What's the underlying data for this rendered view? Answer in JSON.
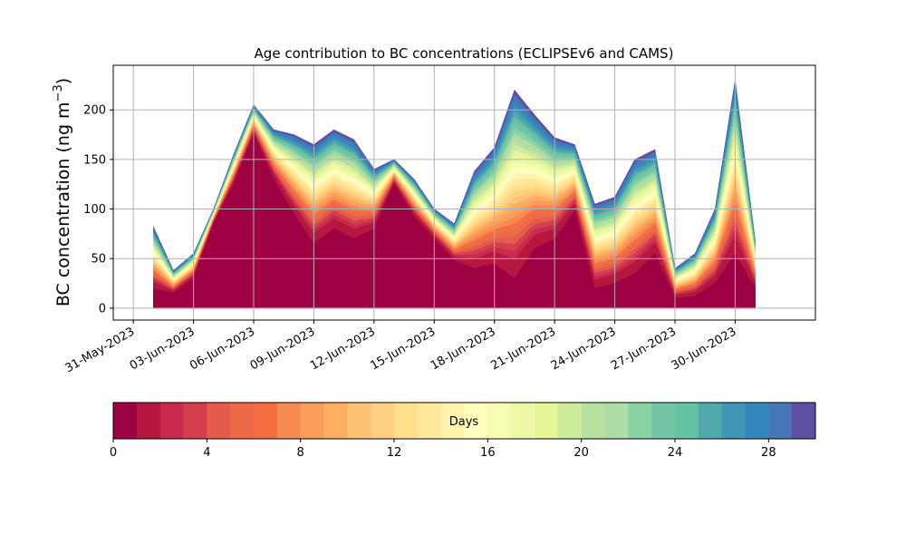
{
  "chart_data": {
    "type": "area",
    "stacked": true,
    "title": "Age contribution to BC concentrations (ECLIPSEv6 and CAMS)",
    "ylabel": "BC concentration (ng m",
    "ylabel_sup": "−3",
    "ylabel_close": ")",
    "xlabel": "",
    "grid": true,
    "ylim": [
      -12,
      245
    ],
    "yticks": [
      0,
      50,
      100,
      150,
      200
    ],
    "xlim": [
      "2023-05-30",
      "2023-07-04"
    ],
    "xticks": [
      "31-May-2023",
      "03-Jun-2023",
      "06-Jun-2023",
      "09-Jun-2023",
      "12-Jun-2023",
      "15-Jun-2023",
      "18-Jun-2023",
      "21-Jun-2023",
      "24-Jun-2023",
      "27-Jun-2023",
      "30-Jun-2023"
    ],
    "xtick_dates": [
      "2023-05-31",
      "2023-06-03",
      "2023-06-06",
      "2023-06-09",
      "2023-06-12",
      "2023-06-15",
      "2023-06-18",
      "2023-06-21",
      "2023-06-24",
      "2023-06-27",
      "2023-06-30"
    ],
    "dates": [
      "2023-06-01",
      "2023-06-02",
      "2023-06-03",
      "2023-06-04",
      "2023-06-05",
      "2023-06-06",
      "2023-06-07",
      "2023-06-08",
      "2023-06-09",
      "2023-06-10",
      "2023-06-11",
      "2023-06-12",
      "2023-06-13",
      "2023-06-14",
      "2023-06-15",
      "2023-06-16",
      "2023-06-17",
      "2023-06-18",
      "2023-06-19",
      "2023-06-20",
      "2023-06-21",
      "2023-06-22",
      "2023-06-23",
      "2023-06-24",
      "2023-06-25",
      "2023-06-26",
      "2023-06-27",
      "2023-06-28",
      "2023-06-29",
      "2023-06-30",
      "2023-07-01"
    ],
    "total_values": [
      82,
      38,
      55,
      100,
      155,
      205,
      180,
      175,
      165,
      180,
      170,
      140,
      150,
      130,
      100,
      85,
      138,
      162,
      220,
      195,
      172,
      165,
      105,
      112,
      150,
      160,
      40,
      55,
      100,
      230,
      68
    ],
    "youngest_day_values": [
      20,
      15,
      30,
      85,
      125,
      175,
      130,
      95,
      65,
      80,
      70,
      80,
      125,
      92,
      70,
      48,
      40,
      45,
      30,
      60,
      70,
      98,
      20,
      25,
      35,
      55,
      10,
      12,
      25,
      55,
      20
    ],
    "colorbar": {
      "label": "Days",
      "min": 0,
      "max": 30,
      "ticks": [
        0,
        4,
        8,
        12,
        16,
        20,
        24,
        28
      ],
      "colors": [
        "#9e0142",
        "#b5173f",
        "#c82b4b",
        "#d53e4f",
        "#e45c4b",
        "#ed6a47",
        "#f46d43",
        "#f88b51",
        "#fa9d59",
        "#fdae61",
        "#fdc372",
        "#fed281",
        "#fee08b",
        "#fee99b",
        "#fff3ad",
        "#ffffbf",
        "#f7fcb3",
        "#eef8a6",
        "#e6f598",
        "#cfec9d",
        "#b6e1a0",
        "#abdda4",
        "#8ad3a4",
        "#72c6a6",
        "#66c2a5",
        "#52a8ac",
        "#3f96b7",
        "#3288bd",
        "#4676b8",
        "#5e4fa2"
      ]
    }
  }
}
